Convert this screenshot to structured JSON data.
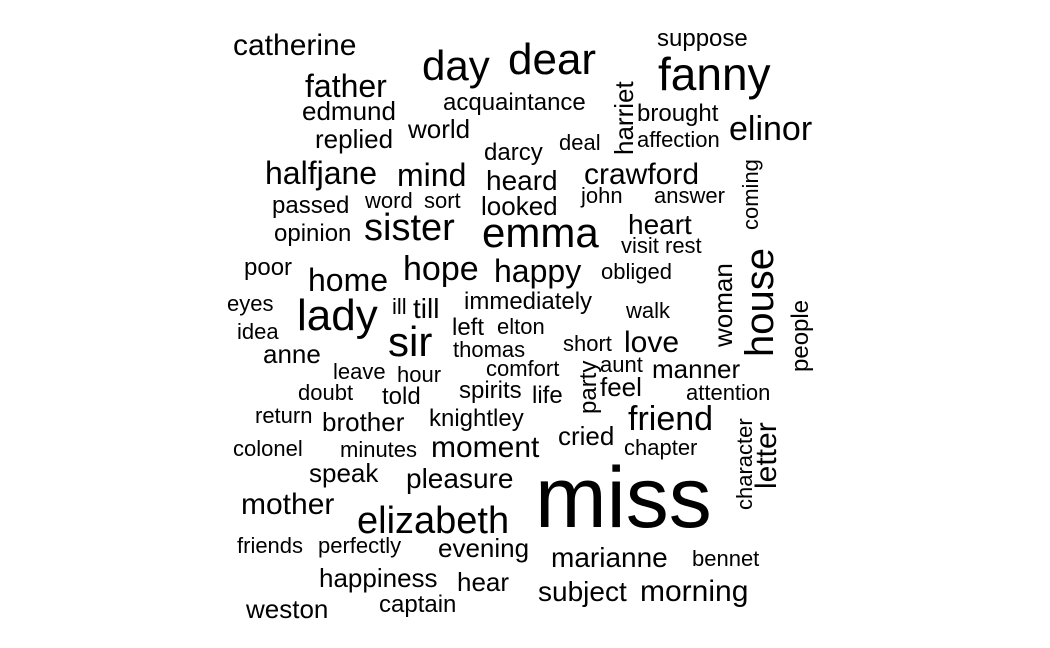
{
  "chart_data": {
    "type": "wordcloud",
    "color": "#000000",
    "words": [
      {
        "word": "miss",
        "rotated": false
      },
      {
        "word": "emma",
        "rotated": false
      },
      {
        "word": "fanny",
        "rotated": false
      },
      {
        "word": "dear",
        "rotated": false
      },
      {
        "word": "day",
        "rotated": false
      },
      {
        "word": "sister",
        "rotated": false
      },
      {
        "word": "sir",
        "rotated": false
      },
      {
        "word": "lady",
        "rotated": false
      },
      {
        "word": "house",
        "rotated": true
      },
      {
        "word": "elizabeth",
        "rotated": false
      },
      {
        "word": "elinor",
        "rotated": false
      },
      {
        "word": "friend",
        "rotated": false
      },
      {
        "word": "hope",
        "rotated": false
      },
      {
        "word": "happy",
        "rotated": false
      },
      {
        "word": "home",
        "rotated": false
      },
      {
        "word": "father",
        "rotated": false
      },
      {
        "word": "mind",
        "rotated": false
      },
      {
        "word": "halfjane",
        "rotated": false
      },
      {
        "word": "crawford",
        "rotated": false
      },
      {
        "word": "mother",
        "rotated": false
      },
      {
        "word": "catherine",
        "rotated": false
      },
      {
        "word": "heard",
        "rotated": false
      },
      {
        "word": "heart",
        "rotated": false
      },
      {
        "word": "love",
        "rotated": false
      },
      {
        "word": "moment",
        "rotated": false
      },
      {
        "word": "marianne",
        "rotated": false
      },
      {
        "word": "morning",
        "rotated": false
      },
      {
        "word": "pleasure",
        "rotated": false
      },
      {
        "word": "letter",
        "rotated": true
      },
      {
        "word": "anne",
        "rotated": false
      },
      {
        "word": "brother",
        "rotated": false
      },
      {
        "word": "subject",
        "rotated": false
      },
      {
        "word": "evening",
        "rotated": false
      },
      {
        "word": "hear",
        "rotated": false
      },
      {
        "word": "woman",
        "rotated": true
      },
      {
        "word": "harriet",
        "rotated": true
      },
      {
        "word": "speak",
        "rotated": false
      },
      {
        "word": "replied",
        "rotated": false
      },
      {
        "word": "edmund",
        "rotated": false
      },
      {
        "word": "world",
        "rotated": false
      },
      {
        "word": "looked",
        "rotated": false
      },
      {
        "word": "knightley",
        "rotated": false
      },
      {
        "word": "cried",
        "rotated": false
      },
      {
        "word": "happiness",
        "rotated": false
      },
      {
        "word": "weston",
        "rotated": false
      },
      {
        "word": "manner",
        "rotated": false
      },
      {
        "word": "till",
        "rotated": false
      },
      {
        "word": "immediately",
        "rotated": false
      },
      {
        "word": "acquaintance",
        "rotated": false
      },
      {
        "word": "darcy",
        "rotated": false
      },
      {
        "word": "feel",
        "rotated": false
      },
      {
        "word": "party",
        "rotated": true
      },
      {
        "word": "spirits",
        "rotated": false
      },
      {
        "word": "suppose",
        "rotated": false
      },
      {
        "word": "brought",
        "rotated": false
      },
      {
        "word": "affection",
        "rotated": false
      },
      {
        "word": "deal",
        "rotated": false
      },
      {
        "word": "john",
        "rotated": false
      },
      {
        "word": "answer",
        "rotated": false
      },
      {
        "word": "passed",
        "rotated": false
      },
      {
        "word": "word",
        "rotated": false
      },
      {
        "word": "sort",
        "rotated": false
      },
      {
        "word": "opinion",
        "rotated": false
      },
      {
        "word": "visit",
        "rotated": false
      },
      {
        "word": "rest",
        "rotated": false
      },
      {
        "word": "coming",
        "rotated": true
      },
      {
        "word": "poor",
        "rotated": false
      },
      {
        "word": "obliged",
        "rotated": false
      },
      {
        "word": "eyes",
        "rotated": false
      },
      {
        "word": "ill",
        "rotated": false
      },
      {
        "word": "walk",
        "rotated": false
      },
      {
        "word": "idea",
        "rotated": false
      },
      {
        "word": "left",
        "rotated": false
      },
      {
        "word": "elton",
        "rotated": false
      },
      {
        "word": "people",
        "rotated": true
      },
      {
        "word": "short",
        "rotated": false
      },
      {
        "word": "thomas",
        "rotated": false
      },
      {
        "word": "leave",
        "rotated": false
      },
      {
        "word": "hour",
        "rotated": false
      },
      {
        "word": "comfort",
        "rotated": false
      },
      {
        "word": "aunt",
        "rotated": false
      },
      {
        "word": "doubt",
        "rotated": false
      },
      {
        "word": "told",
        "rotated": false
      },
      {
        "word": "life",
        "rotated": false
      },
      {
        "word": "attention",
        "rotated": false
      },
      {
        "word": "return",
        "rotated": false
      },
      {
        "word": "character",
        "rotated": true
      },
      {
        "word": "colonel",
        "rotated": false
      },
      {
        "word": "minutes",
        "rotated": false
      },
      {
        "word": "chapter",
        "rotated": false
      },
      {
        "word": "friends",
        "rotated": false
      },
      {
        "word": "perfectly",
        "rotated": false
      },
      {
        "word": "bennet",
        "rotated": false
      },
      {
        "word": "captain",
        "rotated": false
      }
    ]
  }
}
